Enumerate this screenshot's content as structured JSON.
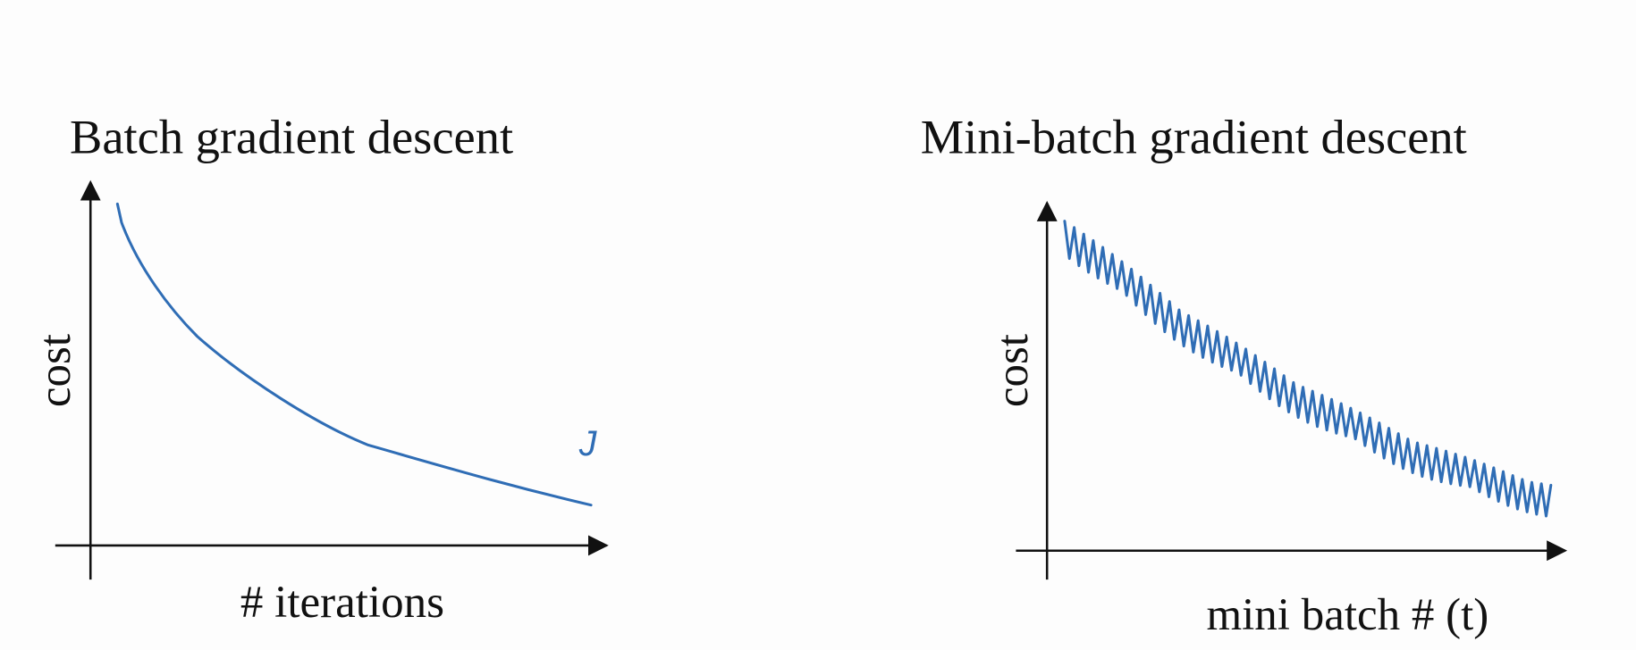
{
  "panels": [
    {
      "title": "Batch gradient descent",
      "y_label": "cost",
      "x_label": "# iterations",
      "annotation": "J"
    },
    {
      "title": "Mini-batch gradient descent",
      "y_label": "cost",
      "x_label": "mini batch # (t)"
    }
  ]
}
